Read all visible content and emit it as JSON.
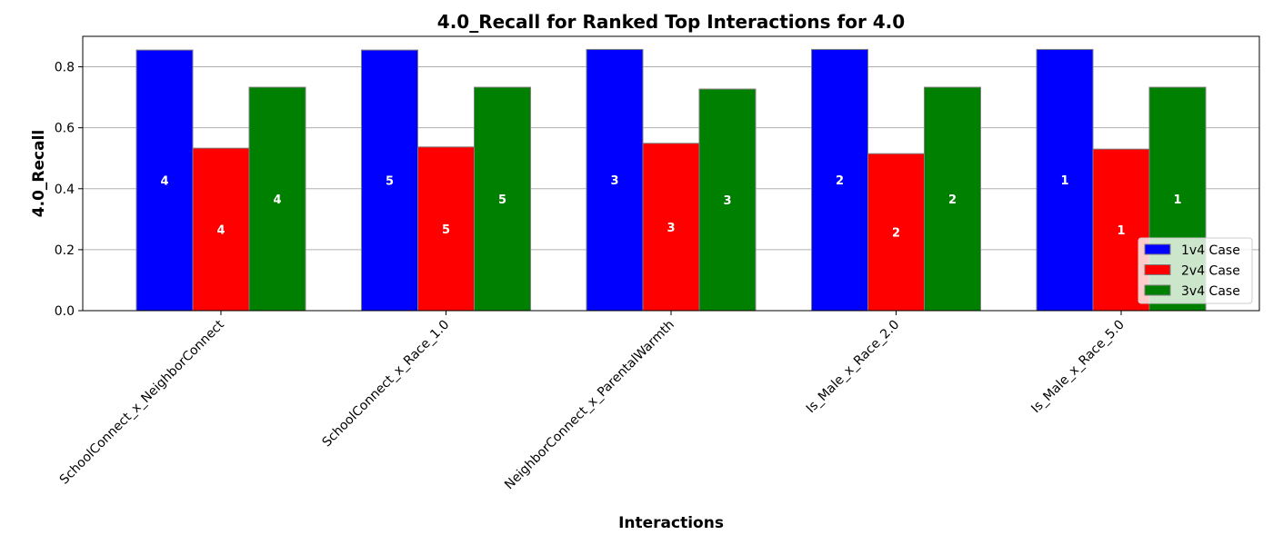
{
  "chart_data": {
    "type": "bar",
    "title": "4.0_Recall for Ranked Top Interactions for 4.0",
    "xlabel": "Interactions",
    "ylabel": "4.0_Recall",
    "ylim": [
      0,
      0.9
    ],
    "yticks": [
      0.0,
      0.2,
      0.4,
      0.6,
      0.8
    ],
    "ytick_labels": [
      "0.0",
      "0.2",
      "0.4",
      "0.6",
      "0.8"
    ],
    "grid": "y",
    "legend_position": "lower-right",
    "categories": [
      "SchoolConnect_x_NeighborConnect",
      "SchoolConnect_x_Race_1.0",
      "NeighborConnect_x_ParentalWarmth",
      "Is_Male_x_Race_2.0",
      "Is_Male_x_Race_5.0"
    ],
    "series": [
      {
        "name": "1v4 Case",
        "color": "#0000ff",
        "values": [
          0.855,
          0.855,
          0.857,
          0.857,
          0.857
        ],
        "ranks": [
          "4",
          "5",
          "3",
          "2",
          "1"
        ]
      },
      {
        "name": "2v4 Case",
        "color": "#ff0000",
        "values": [
          0.533,
          0.537,
          0.549,
          0.515,
          0.53
        ],
        "ranks": [
          "4",
          "5",
          "3",
          "2",
          "1"
        ]
      },
      {
        "name": "3v4 Case",
        "color": "#008000",
        "values": [
          0.733,
          0.733,
          0.727,
          0.733,
          0.733
        ],
        "ranks": [
          "4",
          "5",
          "3",
          "2",
          "1"
        ]
      }
    ]
  }
}
